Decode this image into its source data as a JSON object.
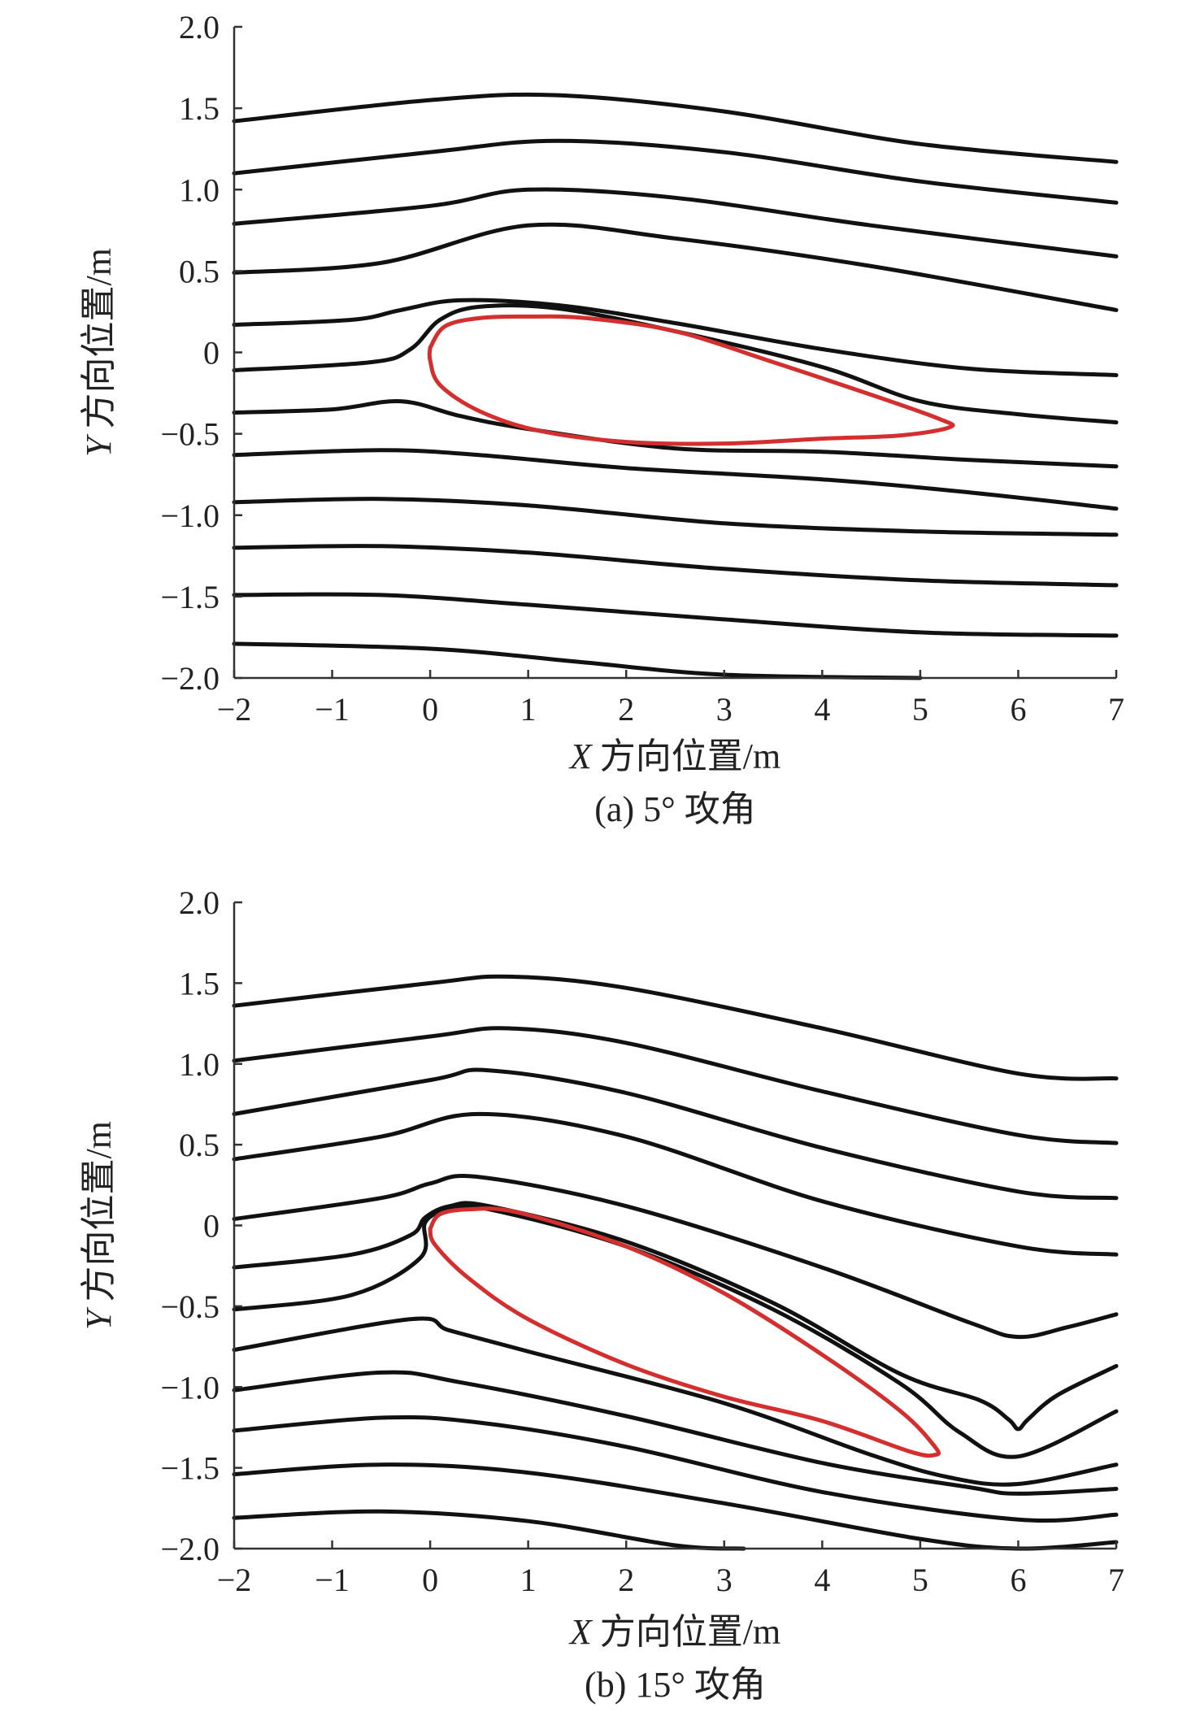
{
  "chart_data": [
    {
      "type": "line",
      "title": "(a) 5° 攻角",
      "xlabel_prefix": "X",
      "xlabel": "方向位置/m",
      "ylabel_prefix": "Y",
      "ylabel": "方向位置/m",
      "xlim": [
        -2,
        7
      ],
      "ylim": [
        -2.0,
        2.0
      ],
      "xticks": [
        -2,
        -1,
        0,
        1,
        2,
        3,
        4,
        5,
        6,
        7
      ],
      "xtick_labels": [
        "−2",
        "−1",
        "0",
        "1",
        "2",
        "3",
        "4",
        "5",
        "6",
        "7"
      ],
      "yticks": [
        2.0,
        1.5,
        1.0,
        0.5,
        0.0,
        -0.5,
        -1.0,
        -1.5,
        -2.0
      ],
      "ytick_labels": [
        "2.0",
        "1.5",
        "1.0",
        "0.5",
        "0",
        "−0.5",
        "−1.0",
        "−1.5",
        "−2.0"
      ],
      "streamlines": [
        [
          [
            -2,
            1.42
          ],
          [
            0,
            1.55
          ],
          [
            1.3,
            1.58
          ],
          [
            3,
            1.48
          ],
          [
            5,
            1.28
          ],
          [
            7,
            1.17
          ]
        ],
        [
          [
            -2,
            1.1
          ],
          [
            0,
            1.23
          ],
          [
            1.3,
            1.3
          ],
          [
            3,
            1.23
          ],
          [
            5,
            1.05
          ],
          [
            7,
            0.92
          ]
        ],
        [
          [
            -2,
            0.79
          ],
          [
            0,
            0.9
          ],
          [
            1,
            1.0
          ],
          [
            2.5,
            0.95
          ],
          [
            4.5,
            0.78
          ],
          [
            7,
            0.59
          ]
        ],
        [
          [
            -2,
            0.49
          ],
          [
            -0.5,
            0.55
          ],
          [
            1,
            0.78
          ],
          [
            2.5,
            0.7
          ],
          [
            4.5,
            0.53
          ],
          [
            7,
            0.26
          ]
        ],
        [
          [
            -2,
            0.17
          ],
          [
            -0.8,
            0.2
          ],
          [
            -0.3,
            0.26
          ],
          [
            0.3,
            0.32
          ],
          [
            1.3,
            0.29
          ],
          [
            2.5,
            0.18
          ],
          [
            4,
            0.02
          ],
          [
            5.5,
            -0.1
          ],
          [
            7,
            -0.14
          ]
        ],
        [
          [
            -2,
            -0.11
          ],
          [
            -0.6,
            -0.06
          ],
          [
            -0.2,
            0.02
          ],
          [
            0.1,
            0.2
          ],
          [
            0.5,
            0.28
          ],
          [
            1.3,
            0.27
          ],
          [
            2.5,
            0.13
          ],
          [
            4,
            -0.09
          ],
          [
            5,
            -0.3
          ],
          [
            6,
            -0.38
          ],
          [
            7,
            -0.43
          ]
        ],
        [
          [
            -2,
            -0.37
          ],
          [
            -1,
            -0.35
          ],
          [
            -0.3,
            -0.3
          ],
          [
            0.3,
            -0.39
          ],
          [
            1,
            -0.47
          ],
          [
            2.5,
            -0.59
          ],
          [
            4,
            -0.61
          ],
          [
            5.5,
            -0.66
          ],
          [
            7,
            -0.7
          ]
        ],
        [
          [
            -2,
            -0.63
          ],
          [
            -0.5,
            -0.6
          ],
          [
            0.5,
            -0.63
          ],
          [
            2,
            -0.71
          ],
          [
            4,
            -0.78
          ],
          [
            5.5,
            -0.86
          ],
          [
            7,
            -0.96
          ]
        ],
        [
          [
            -2,
            -0.92
          ],
          [
            -0.5,
            -0.9
          ],
          [
            1,
            -0.94
          ],
          [
            3,
            -1.05
          ],
          [
            5,
            -1.1
          ],
          [
            7,
            -1.12
          ]
        ],
        [
          [
            -2,
            -1.2
          ],
          [
            -0.5,
            -1.19
          ],
          [
            1,
            -1.23
          ],
          [
            3,
            -1.33
          ],
          [
            5,
            -1.4
          ],
          [
            7,
            -1.43
          ]
        ],
        [
          [
            -2,
            -1.49
          ],
          [
            -0.5,
            -1.49
          ],
          [
            1,
            -1.55
          ],
          [
            3,
            -1.64
          ],
          [
            5,
            -1.72
          ],
          [
            7,
            -1.74
          ]
        ],
        [
          [
            -2,
            -1.79
          ],
          [
            0,
            -1.82
          ],
          [
            1.5,
            -1.9
          ],
          [
            3,
            -1.98
          ],
          [
            5,
            -2.0
          ]
        ]
      ],
      "airfoil": [
        [
          0.0,
          0.03
        ],
        [
          0.15,
          0.16
        ],
        [
          0.5,
          0.21
        ],
        [
          1.0,
          0.22
        ],
        [
          1.6,
          0.21
        ],
        [
          2.5,
          0.13
        ],
        [
          3.5,
          -0.06
        ],
        [
          4.5,
          -0.26
        ],
        [
          5.2,
          -0.41
        ],
        [
          5.3,
          -0.46
        ],
        [
          4.8,
          -0.51
        ],
        [
          4.0,
          -0.53
        ],
        [
          3.0,
          -0.56
        ],
        [
          2.0,
          -0.55
        ],
        [
          1.1,
          -0.48
        ],
        [
          0.5,
          -0.36
        ],
        [
          0.1,
          -0.2
        ],
        [
          0.0,
          -0.05
        ],
        [
          0.0,
          0.03
        ]
      ]
    },
    {
      "type": "line",
      "title": "(b) 15° 攻角",
      "xlabel_prefix": "X",
      "xlabel": "方向位置/m",
      "ylabel_prefix": "Y",
      "ylabel": "方向位置/m",
      "xlim": [
        -2,
        7
      ],
      "ylim": [
        -2.0,
        2.0
      ],
      "xticks": [
        -2,
        -1,
        0,
        1,
        2,
        3,
        4,
        5,
        6,
        7
      ],
      "xtick_labels": [
        "−2",
        "−1",
        "0",
        "1",
        "2",
        "3",
        "4",
        "5",
        "6",
        "7"
      ],
      "yticks": [
        2.0,
        1.5,
        1.0,
        0.5,
        0.0,
        -0.5,
        -1.0,
        -1.5,
        -2.0
      ],
      "ytick_labels": [
        "2.0",
        "1.5",
        "1.0",
        "0.5",
        "0",
        "−0.5",
        "−1.0",
        "−1.5",
        "−2.0"
      ],
      "streamlines": [
        [
          [
            -2,
            1.36
          ],
          [
            0,
            1.5
          ],
          [
            0.8,
            1.54
          ],
          [
            2,
            1.47
          ],
          [
            4,
            1.22
          ],
          [
            6,
            0.94
          ],
          [
            7,
            0.91
          ]
        ],
        [
          [
            -2,
            1.02
          ],
          [
            0,
            1.17
          ],
          [
            0.8,
            1.22
          ],
          [
            2,
            1.13
          ],
          [
            4,
            0.83
          ],
          [
            6,
            0.56
          ],
          [
            7,
            0.51
          ]
        ],
        [
          [
            -2,
            0.69
          ],
          [
            0,
            0.9
          ],
          [
            0.6,
            0.96
          ],
          [
            2,
            0.82
          ],
          [
            4,
            0.48
          ],
          [
            6,
            0.21
          ],
          [
            7,
            0.17
          ]
        ],
        [
          [
            -2,
            0.41
          ],
          [
            -0.5,
            0.55
          ],
          [
            0.5,
            0.69
          ],
          [
            2,
            0.55
          ],
          [
            4,
            0.15
          ],
          [
            6,
            -0.13
          ],
          [
            7,
            -0.18
          ]
        ],
        [
          [
            -2,
            0.04
          ],
          [
            -0.5,
            0.17
          ],
          [
            0,
            0.26
          ],
          [
            0.5,
            0.3
          ],
          [
            2,
            0.12
          ],
          [
            4,
            -0.26
          ],
          [
            5.5,
            -0.6
          ],
          [
            6,
            -0.69
          ],
          [
            6.5,
            -0.63
          ],
          [
            7,
            -0.55
          ]
        ],
        [
          [
            -2,
            -0.26
          ],
          [
            -0.8,
            -0.18
          ],
          [
            -0.2,
            -0.06
          ],
          [
            -0.05,
            0.05
          ],
          [
            0.2,
            0.12
          ],
          [
            0.6,
            0.12
          ],
          [
            2,
            -0.1
          ],
          [
            3.5,
            -0.48
          ],
          [
            4.8,
            -0.92
          ],
          [
            5.6,
            -1.08
          ],
          [
            5.9,
            -1.2
          ],
          [
            6,
            -1.26
          ],
          [
            6.1,
            -1.2
          ],
          [
            6.4,
            -1.05
          ],
          [
            7,
            -0.87
          ]
        ],
        [
          [
            -2,
            -0.52
          ],
          [
            -0.8,
            -0.43
          ],
          [
            -0.1,
            -0.2
          ],
          [
            -0.05,
            0.02
          ],
          [
            0.2,
            0.1
          ],
          [
            0.6,
            0.1
          ],
          [
            2,
            -0.13
          ],
          [
            3.5,
            -0.52
          ],
          [
            4.8,
            -0.98
          ],
          [
            5.4,
            -1.28
          ],
          [
            6,
            -1.43
          ],
          [
            7,
            -1.15
          ]
        ],
        [
          [
            -2,
            -0.77
          ],
          [
            -0.2,
            -0.58
          ],
          [
            0.2,
            -0.65
          ],
          [
            1,
            -0.78
          ],
          [
            3,
            -1.1
          ],
          [
            4.5,
            -1.42
          ],
          [
            5.3,
            -1.56
          ],
          [
            6,
            -1.6
          ],
          [
            7,
            -1.48
          ]
        ],
        [
          [
            -2,
            -1.02
          ],
          [
            -0.5,
            -0.91
          ],
          [
            0.3,
            -0.97
          ],
          [
            2,
            -1.18
          ],
          [
            4,
            -1.47
          ],
          [
            5.5,
            -1.62
          ],
          [
            6,
            -1.66
          ],
          [
            7,
            -1.63
          ]
        ],
        [
          [
            -2,
            -1.27
          ],
          [
            -0.5,
            -1.19
          ],
          [
            0.5,
            -1.22
          ],
          [
            2,
            -1.37
          ],
          [
            4,
            -1.65
          ],
          [
            6,
            -1.82
          ],
          [
            7,
            -1.79
          ]
        ],
        [
          [
            -2,
            -1.54
          ],
          [
            -0.5,
            -1.48
          ],
          [
            1,
            -1.53
          ],
          [
            3,
            -1.72
          ],
          [
            5,
            -1.94
          ],
          [
            6,
            -2.0
          ],
          [
            7,
            -1.96
          ]
        ],
        [
          [
            -2,
            -1.81
          ],
          [
            -0.5,
            -1.77
          ],
          [
            1,
            -1.83
          ],
          [
            2.5,
            -1.98
          ],
          [
            3.2,
            -2.0
          ]
        ]
      ],
      "airfoil": [
        [
          0.0,
          -0.02
        ],
        [
          0.1,
          0.07
        ],
        [
          0.4,
          0.1
        ],
        [
          0.9,
          0.08
        ],
        [
          2.0,
          -0.13
        ],
        [
          3.0,
          -0.42
        ],
        [
          4.0,
          -0.8
        ],
        [
          4.8,
          -1.15
        ],
        [
          5.15,
          -1.37
        ],
        [
          5.15,
          -1.42
        ],
        [
          4.9,
          -1.4
        ],
        [
          4.0,
          -1.21
        ],
        [
          3.0,
          -1.06
        ],
        [
          2.0,
          -0.86
        ],
        [
          1.0,
          -0.58
        ],
        [
          0.4,
          -0.33
        ],
        [
          0.05,
          -0.12
        ],
        [
          0.0,
          -0.02
        ]
      ]
    }
  ]
}
